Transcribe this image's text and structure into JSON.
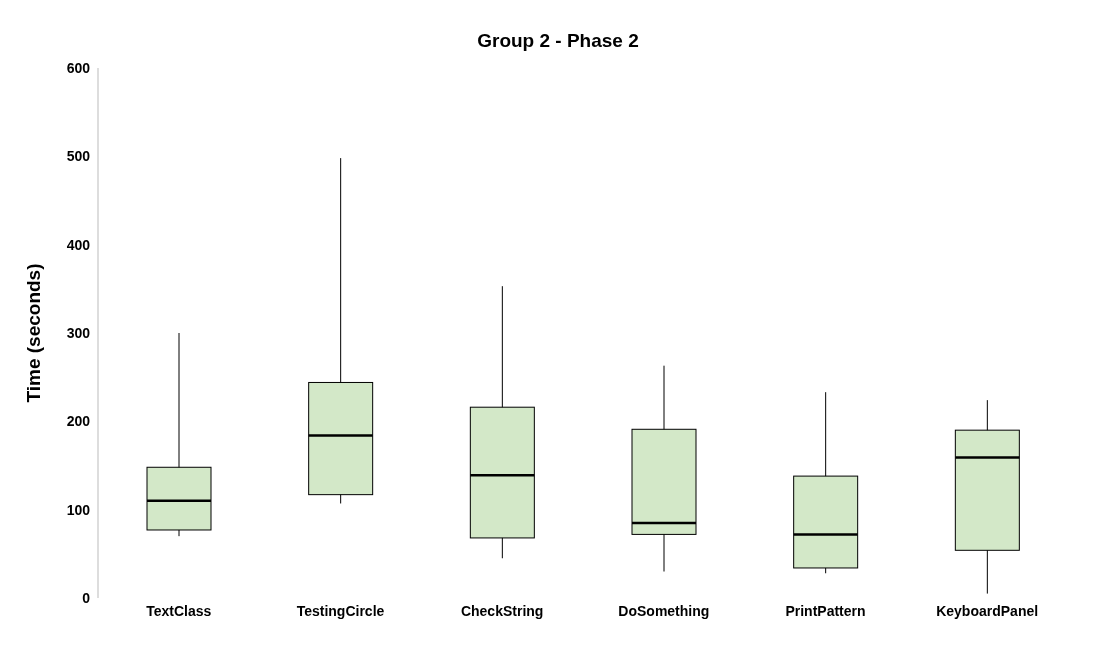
{
  "chart_data": {
    "type": "box",
    "title": "Group 2 - Phase 2",
    "ylabel": "Time (seconds)",
    "categories": [
      "TextClass",
      "TestingCircle",
      "CheckString",
      "DoSomething",
      "PrintPattern",
      "KeyboardPanel"
    ],
    "boxes": [
      {
        "low": 70,
        "q1": 77,
        "median": 110,
        "q3": 148,
        "high": 300
      },
      {
        "low": 107,
        "q1": 117,
        "median": 184,
        "q3": 244,
        "high": 498
      },
      {
        "low": 45,
        "q1": 68,
        "median": 139,
        "q3": 216,
        "high": 353
      },
      {
        "low": 30,
        "q1": 72,
        "median": 85,
        "q3": 191,
        "high": 263
      },
      {
        "low": 28,
        "q1": 34,
        "median": 72,
        "q3": 138,
        "high": 233
      },
      {
        "low": 5,
        "q1": 54,
        "median": 159,
        "q3": 190,
        "high": 224
      }
    ],
    "color": "#d3e8c8",
    "ylim": [
      0,
      600
    ],
    "yticks": [
      0,
      100,
      200,
      300,
      400,
      500,
      600
    ],
    "grid": false
  }
}
